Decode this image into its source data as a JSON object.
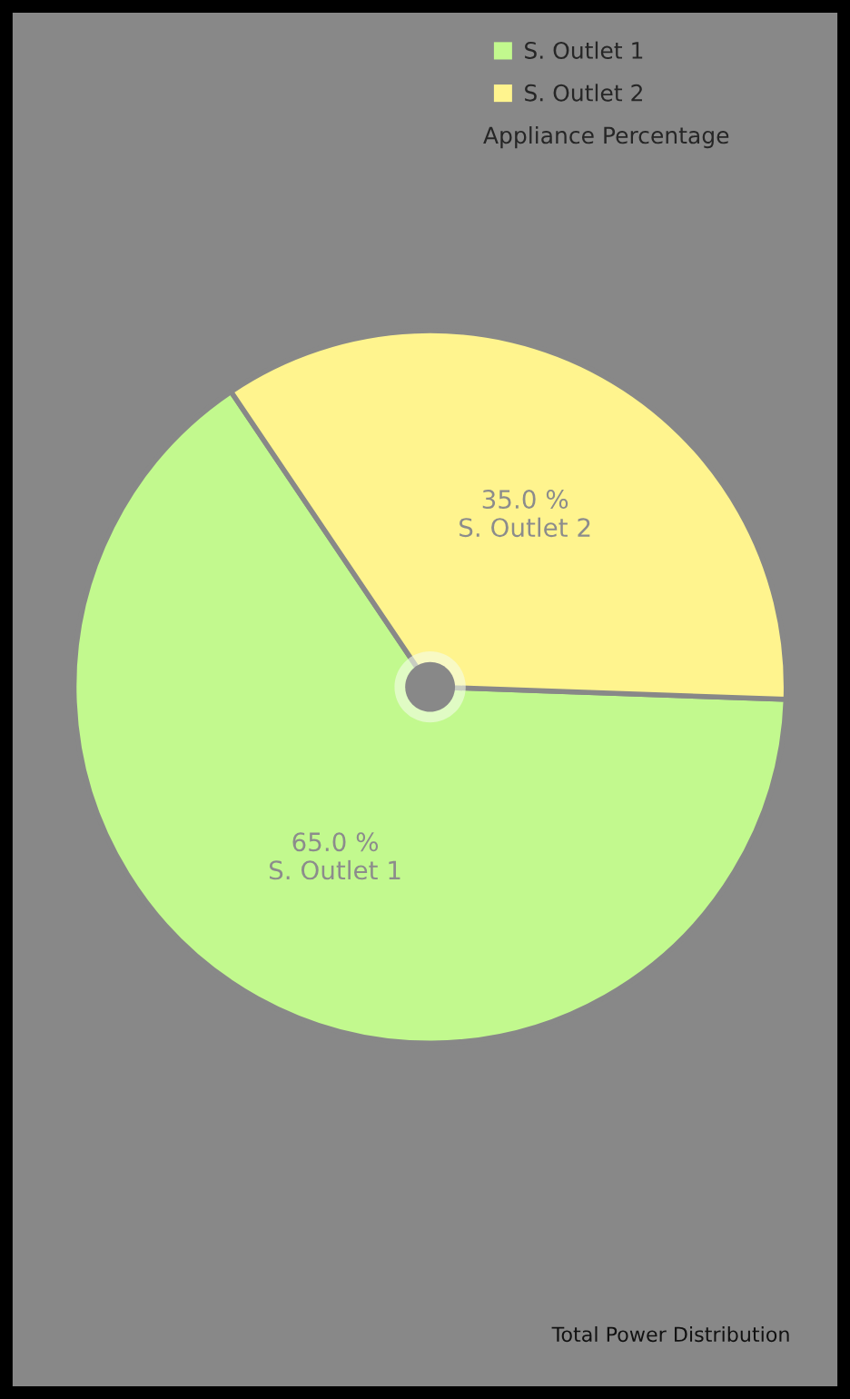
{
  "chart_data": {
    "type": "pie",
    "categories": [
      "S. Outlet 1",
      "S. Outlet 2"
    ],
    "values": [
      65.0,
      35.0
    ],
    "value_labels": [
      "65.0 %",
      "35.0 %"
    ],
    "colors": [
      "#c2f98e",
      "#fff48e"
    ],
    "legend": "top right",
    "legend_title": "Appliance Percentage",
    "annotations": [
      "Total Power Distribution"
    ]
  }
}
